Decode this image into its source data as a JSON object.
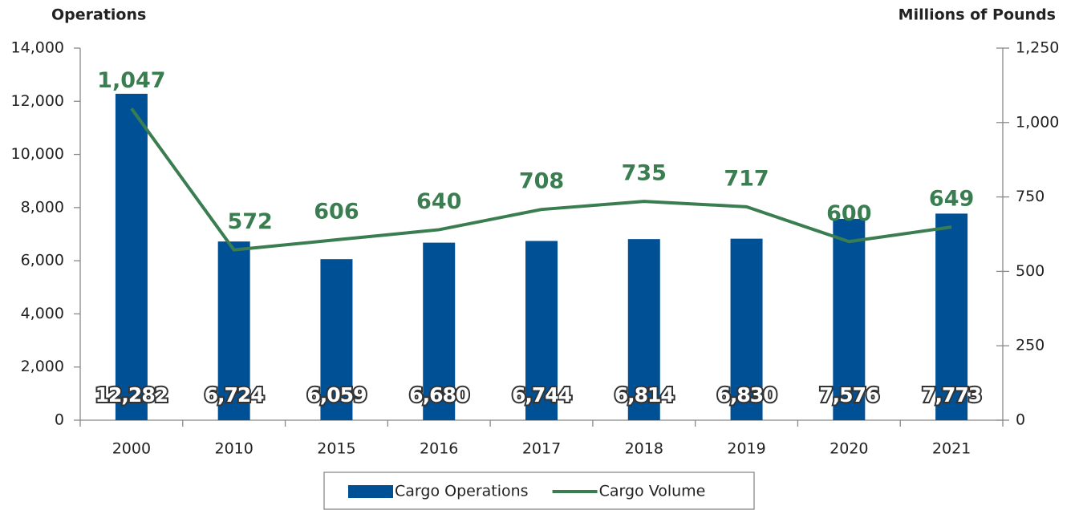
{
  "chart_data": {
    "type": "bar",
    "y_label": "Operations",
    "y2_label": "Millions of Pounds",
    "categories": [
      "2000",
      "2010",
      "2015",
      "2016",
      "2017",
      "2018",
      "2019",
      "2020",
      "2021"
    ],
    "series": [
      {
        "name": "Cargo Operations",
        "type": "bar",
        "color": "#005096",
        "values": [
          12282,
          6724,
          6059,
          6680,
          6744,
          6814,
          6830,
          7576,
          7773
        ],
        "value_labels": [
          "12,282",
          "6,724",
          "6,059",
          "6,680",
          "6,744",
          "6,814",
          "6,830",
          "7,576",
          "7,773"
        ]
      },
      {
        "name": "Cargo Volume",
        "type": "line",
        "axis": "y2",
        "color": "#3a7d50",
        "values": [
          1047,
          572,
          606,
          640,
          708,
          735,
          717,
          600,
          649
        ],
        "value_labels": [
          "1,047",
          "572",
          "606",
          "640",
          "708",
          "735",
          "717",
          "600",
          "649"
        ]
      }
    ],
    "ylim": [
      0,
      14000
    ],
    "yticks": [
      0,
      {
        "value": 2000,
        "label": "2,000"
      },
      {
        "value": 4000,
        "label": "4,000"
      },
      {
        "value": 6000,
        "label": "6,000"
      },
      {
        "value": 8000,
        "label": "8,000"
      },
      {
        "value": 10000,
        "label": "10,000"
      },
      {
        "value": 12000,
        "label": "12,000"
      },
      {
        "value": 14000,
        "label": "14,000"
      }
    ],
    "y2lim": [
      0,
      1250
    ],
    "y2ticks": [
      0,
      250,
      500,
      750,
      {
        "value": 1000,
        "label": "1,000"
      },
      {
        "value": 1250,
        "label": "1,250"
      }
    ],
    "legend": "bottom",
    "grid": false
  }
}
